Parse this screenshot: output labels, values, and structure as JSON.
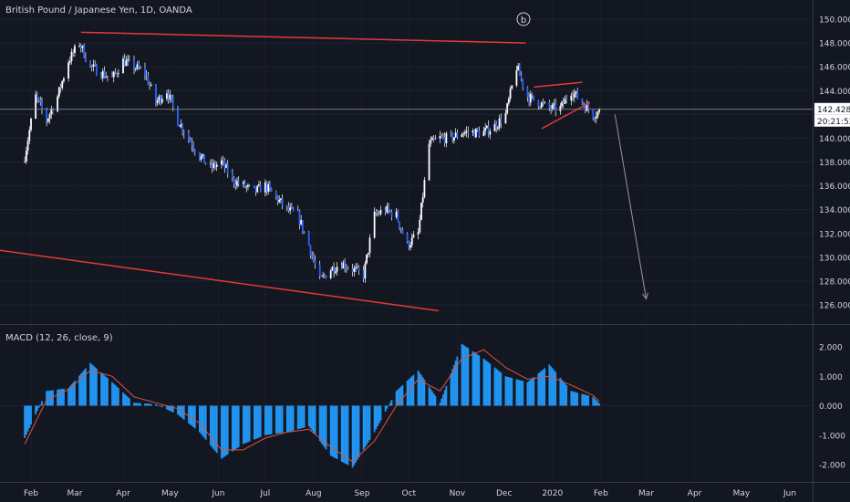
{
  "header": {
    "symbol_title": "British Pound / Japanese Yen, 1D, OANDA"
  },
  "wave_label": "b",
  "price": {
    "current_label": "142.428",
    "countdown_label": "20:21:52",
    "current_value": 142.428
  },
  "macd": {
    "title": "MACD (12, 26, close, 9)"
  },
  "colors": {
    "background": "#131722",
    "candle": "#ffffff",
    "macd_histogram": "#2196f3",
    "macd_signal": "#e0523a",
    "trendline": "#e53935",
    "projection_arrow": "#9598a1",
    "text": "#d1d4dc"
  },
  "chart_data": [
    {
      "type": "candlestick",
      "title": "British Pound / Japanese Yen, 1D, OANDA",
      "ylim": [
        125,
        151
      ],
      "y_ticks": [
        "150.000",
        "148.000",
        "146.000",
        "144.000",
        "142.000",
        "140.000",
        "138.000",
        "136.000",
        "134.000",
        "132.000",
        "130.000",
        "128.000",
        "126.000"
      ],
      "x_ticks": [
        "Feb",
        "Mar",
        "Apr",
        "May",
        "Jun",
        "Jul",
        "Aug",
        "Sep",
        "Oct",
        "Nov",
        "Dec",
        "2020",
        "Feb",
        "Mar",
        "Apr",
        "May",
        "Jun"
      ],
      "close_series": {
        "dates": [
          "2019-01-28",
          "2019-02-04",
          "2019-02-11",
          "2019-02-18",
          "2019-02-25",
          "2019-03-04",
          "2019-03-11",
          "2019-03-18",
          "2019-03-25",
          "2019-04-01",
          "2019-04-08",
          "2019-04-15",
          "2019-04-22",
          "2019-04-29",
          "2019-05-06",
          "2019-05-13",
          "2019-05-20",
          "2019-05-27",
          "2019-06-03",
          "2019-06-10",
          "2019-06-17",
          "2019-06-24",
          "2019-07-01",
          "2019-07-08",
          "2019-07-15",
          "2019-07-22",
          "2019-07-29",
          "2019-08-05",
          "2019-08-12",
          "2019-08-19",
          "2019-08-26",
          "2019-09-02",
          "2019-09-09",
          "2019-09-16",
          "2019-09-23",
          "2019-09-30",
          "2019-10-07",
          "2019-10-14",
          "2019-10-21",
          "2019-10-28",
          "2019-11-04",
          "2019-11-11",
          "2019-11-18",
          "2019-11-25",
          "2019-12-02",
          "2019-12-09",
          "2019-12-16",
          "2019-12-23",
          "2019-12-30",
          "2020-01-06",
          "2020-01-13",
          "2020-01-20",
          "2020-01-27",
          "2020-02-03"
        ],
        "values": [
          138.5,
          143.5,
          141.5,
          143.5,
          146.5,
          148.0,
          146.0,
          145.5,
          145.0,
          146.5,
          146.0,
          145.5,
          143.0,
          144.0,
          141.5,
          140.0,
          138.5,
          137.5,
          138.0,
          136.5,
          136.0,
          135.5,
          136.0,
          135.0,
          134.0,
          133.5,
          131.0,
          128.0,
          129.0,
          129.5,
          129.0,
          128.5,
          133.5,
          134.0,
          133.5,
          131.0,
          132.0,
          139.5,
          140.0,
          140.0,
          140.5,
          140.5,
          140.5,
          141.0,
          142.0,
          146.0,
          143.5,
          143.0,
          142.5,
          142.5,
          144.0,
          143.0,
          142.0,
          142.4
        ]
      },
      "annotations": {
        "trendline_top": [
          [
            "2019-03-05",
            148.9
          ],
          [
            "2019-12-15",
            148.0
          ]
        ],
        "trendline_bottom": [
          [
            "2018-12-31",
            130.8
          ],
          [
            "2019-10-20",
            125.5
          ]
        ],
        "triangle_upper": [
          [
            "2019-12-20",
            144.3
          ],
          [
            "2020-01-20",
            144.7
          ]
        ],
        "triangle_lower": [
          [
            "2019-12-25",
            140.8
          ],
          [
            "2020-01-25",
            143.0
          ]
        ],
        "projection_arrow": [
          [
            "2020-02-10",
            142.0
          ],
          [
            "2020-03-01",
            126.5
          ]
        ]
      }
    },
    {
      "type": "bar",
      "title": "MACD (12, 26, close, 9)",
      "ylim": [
        -2.2,
        2.2
      ],
      "y_ticks": [
        "2.000",
        "1.000",
        "0.000",
        "-1.000",
        "-2.000"
      ],
      "series": [
        {
          "x": [
            "2019-01-28",
            "2019-02-11",
            "2019-02-25",
            "2019-03-11",
            "2019-03-25",
            "2019-04-08",
            "2019-04-22",
            "2019-05-06",
            "2019-05-20",
            "2019-06-03",
            "2019-06-17",
            "2019-07-01",
            "2019-07-15",
            "2019-07-29",
            "2019-08-12",
            "2019-08-26",
            "2019-09-09",
            "2019-09-23",
            "2019-10-07",
            "2019-10-21",
            "2019-11-04",
            "2019-11-18",
            "2019-12-02",
            "2019-12-16",
            "2019-12-30",
            "2020-01-13",
            "2020-01-27",
            "2020-02-03"
          ],
          "values": [
            -1.1,
            0.5,
            0.6,
            1.45,
            0.8,
            0.1,
            0.05,
            -0.3,
            -0.9,
            -1.8,
            -1.3,
            -1.0,
            -0.9,
            -0.7,
            -1.7,
            -2.1,
            -0.9,
            0.5,
            1.2,
            0.1,
            2.1,
            1.6,
            1.0,
            0.8,
            1.4,
            0.5,
            0.3,
            -0.1
          ]
        },
        {
          "x": [
            "2019-01-28",
            "2019-02-11",
            "2019-02-25",
            "2019-03-11",
            "2019-03-25",
            "2019-04-08",
            "2019-04-22",
            "2019-05-06",
            "2019-05-20",
            "2019-06-03",
            "2019-06-17",
            "2019-07-01",
            "2019-07-15",
            "2019-07-29",
            "2019-08-12",
            "2019-08-26",
            "2019-09-09",
            "2019-09-23",
            "2019-10-07",
            "2019-10-21",
            "2019-11-04",
            "2019-11-18",
            "2019-12-02",
            "2019-12-16",
            "2019-12-30",
            "2020-01-13",
            "2020-01-27",
            "2020-02-03"
          ],
          "values": [
            -1.3,
            0.2,
            0.55,
            1.2,
            1.0,
            0.3,
            0.1,
            -0.1,
            -0.6,
            -1.5,
            -1.5,
            -1.1,
            -0.9,
            -0.8,
            -1.4,
            -1.9,
            -1.2,
            0.0,
            0.9,
            0.5,
            1.6,
            1.9,
            1.3,
            0.9,
            1.0,
            0.7,
            0.35,
            0.0
          ]
        }
      ]
    }
  ]
}
